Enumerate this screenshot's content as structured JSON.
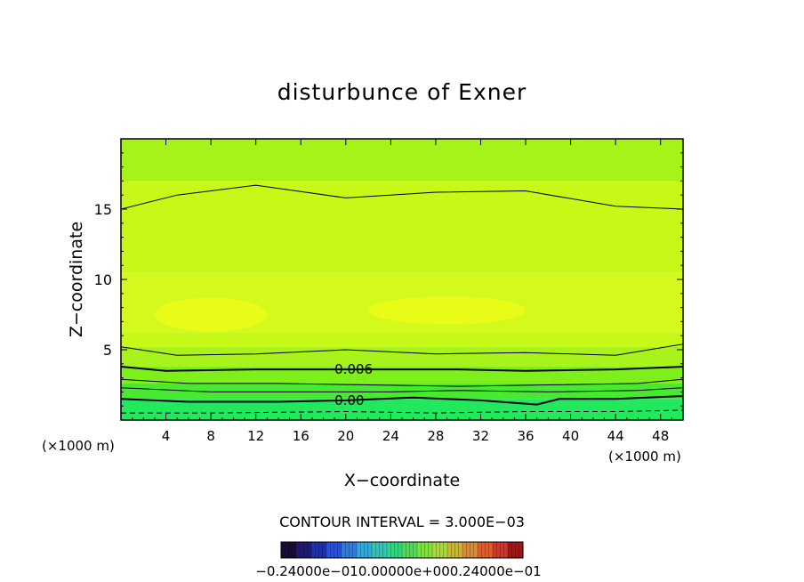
{
  "chart_data": {
    "type": "contour",
    "title": "disturbunce of Exner",
    "xlabel": "X−coordinate",
    "ylabel": "Z−coordinate",
    "x_unit_left": "(×1000 m)",
    "x_unit_right": "(×1000 m)",
    "xlim": [
      0,
      50
    ],
    "ylim": [
      0,
      20
    ],
    "x_ticks": [
      4,
      8,
      12,
      16,
      20,
      24,
      28,
      32,
      36,
      40,
      44,
      48
    ],
    "x_tick_labels": [
      "4",
      "8",
      "12",
      "16",
      "20",
      "24",
      "28",
      "32",
      "36",
      "40",
      "44",
      "48"
    ],
    "y_ticks": [
      5,
      10,
      15
    ],
    "y_tick_labels": [
      "5",
      "10",
      "15"
    ],
    "grid": false,
    "contour_interval_text": "CONTOUR INTERVAL = 3.000E−03",
    "colorbar_labels_text": "−0.24000e−010.00000e+000.24000e−01",
    "contour_labels": [
      {
        "text": "0.006",
        "x": 19,
        "z": 3.6
      },
      {
        "text": "0.00",
        "x": 19,
        "z": 1.4
      }
    ],
    "contours": [
      {
        "style": "thin-solid",
        "points": [
          [
            0,
            15
          ],
          [
            5,
            16
          ],
          [
            12,
            16.7
          ],
          [
            20,
            15.8
          ],
          [
            28,
            16.2
          ],
          [
            36,
            16.3
          ],
          [
            44,
            15.2
          ],
          [
            50,
            15
          ]
        ]
      },
      {
        "style": "thin-solid",
        "points": [
          [
            0,
            5.2
          ],
          [
            5,
            4.6
          ],
          [
            12,
            4.7
          ],
          [
            20,
            5.0
          ],
          [
            28,
            4.7
          ],
          [
            36,
            4.8
          ],
          [
            44,
            4.6
          ],
          [
            50,
            5.4
          ]
        ]
      },
      {
        "style": "thick-solid",
        "points": [
          [
            0,
            3.8
          ],
          [
            4,
            3.5
          ],
          [
            12,
            3.6
          ],
          [
            20,
            3.6
          ],
          [
            24,
            3.6
          ],
          [
            30,
            3.6
          ],
          [
            36,
            3.5
          ],
          [
            44,
            3.6
          ],
          [
            50,
            3.8
          ]
        ]
      },
      {
        "style": "thin-solid",
        "points": [
          [
            0,
            2.9
          ],
          [
            6,
            2.6
          ],
          [
            14,
            2.6
          ],
          [
            22,
            2.5
          ],
          [
            30,
            2.4
          ],
          [
            38,
            2.5
          ],
          [
            46,
            2.6
          ],
          [
            50,
            2.9
          ]
        ]
      },
      {
        "style": "thin-solid",
        "points": [
          [
            0,
            2.3
          ],
          [
            8,
            2.0
          ],
          [
            16,
            2.0
          ],
          [
            24,
            2.0
          ],
          [
            30,
            2.1
          ],
          [
            38,
            2.0
          ],
          [
            46,
            2.1
          ],
          [
            50,
            2.3
          ]
        ]
      },
      {
        "style": "thick-solid",
        "points": [
          [
            0,
            1.5
          ],
          [
            6,
            1.3
          ],
          [
            14,
            1.3
          ],
          [
            20,
            1.4
          ],
          [
            26,
            1.6
          ],
          [
            32,
            1.4
          ],
          [
            37,
            1.1
          ],
          [
            39,
            1.5
          ],
          [
            44,
            1.5
          ],
          [
            50,
            1.7
          ]
        ]
      },
      {
        "style": "thin-dashed",
        "points": [
          [
            0,
            0.5
          ],
          [
            8,
            0.5
          ],
          [
            20,
            0.6
          ],
          [
            28,
            0.5
          ],
          [
            36,
            0.6
          ],
          [
            44,
            0.6
          ],
          [
            50,
            0.7
          ]
        ]
      }
    ],
    "bands": [
      {
        "z_from": 17,
        "z_to": 20,
        "color": "#a6f319"
      },
      {
        "z_from": 10.5,
        "z_to": 17,
        "color": "#c6f818"
      },
      {
        "z_from": 6.2,
        "z_to": 10.5,
        "color": "#d4f91c"
      },
      {
        "z_from": 5.2,
        "z_to": 6.2,
        "color": "#c6f818"
      },
      {
        "z_from": 3.8,
        "z_to": 5.2,
        "color": "#a8f31c"
      },
      {
        "z_from": 2.6,
        "z_to": 3.8,
        "color": "#7def1a"
      },
      {
        "z_from": 1.5,
        "z_to": 2.6,
        "color": "#47ea30"
      },
      {
        "z_from": 0,
        "z_to": 1.5,
        "color": "#22e85e"
      }
    ],
    "highlights": [
      {
        "cx": 8,
        "cz": 7.5,
        "rx": 5,
        "rz": 1.2,
        "color": "#e8fc18"
      },
      {
        "cx": 29,
        "cz": 7.8,
        "rx": 7,
        "rz": 1.0,
        "color": "#e8fc18"
      }
    ],
    "colorbar": [
      "#1a0a3a",
      "#201a6e",
      "#1e2fb0",
      "#2a4fd6",
      "#2f7be0",
      "#34a6d8",
      "#2fc6b4",
      "#33d383",
      "#4fdb58",
      "#7fe13f",
      "#a8d83a",
      "#c8b536",
      "#d98a33",
      "#db5e2f",
      "#d3352a",
      "#9a1a1a"
    ]
  }
}
